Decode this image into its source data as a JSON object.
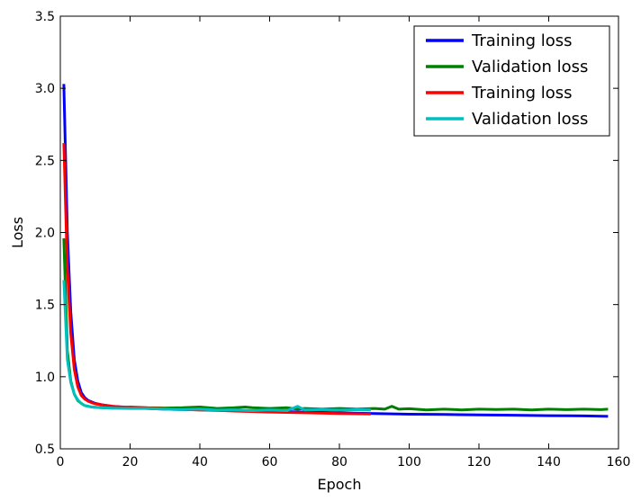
{
  "chart_data": {
    "type": "line",
    "xlabel": "Epoch",
    "ylabel": "Loss",
    "xlim": [
      0,
      160
    ],
    "ylim": [
      0.5,
      3.5
    ],
    "xticks": [
      "0",
      "20",
      "40",
      "60",
      "80",
      "100",
      "120",
      "140",
      "160"
    ],
    "yticks": [
      "0.5",
      "1.0",
      "1.5",
      "2.0",
      "2.5",
      "3.0",
      "3.5"
    ],
    "grid": false,
    "legend_position": "top-right",
    "series": [
      {
        "name": "Training loss",
        "color": "#0000ff",
        "x": [
          1,
          2,
          3,
          4,
          5,
          6,
          7,
          8,
          9,
          10,
          12,
          15,
          20,
          25,
          30,
          40,
          50,
          60,
          70,
          80,
          90,
          100,
          110,
          120,
          130,
          140,
          150,
          157
        ],
        "y": [
          3.03,
          2.0,
          1.45,
          1.12,
          0.97,
          0.89,
          0.855,
          0.835,
          0.825,
          0.815,
          0.805,
          0.795,
          0.785,
          0.78,
          0.775,
          0.77,
          0.765,
          0.76,
          0.755,
          0.75,
          0.745,
          0.74,
          0.738,
          0.735,
          0.733,
          0.73,
          0.728,
          0.725
        ]
      },
      {
        "name": "Validation loss",
        "color": "#008000",
        "x": [
          1,
          2,
          3,
          4,
          5,
          6,
          7,
          8,
          9,
          10,
          12,
          15,
          20,
          25,
          30,
          35,
          40,
          45,
          50,
          53,
          55,
          60,
          65,
          68,
          70,
          75,
          80,
          85,
          90,
          93,
          95,
          97,
          100,
          105,
          110,
          115,
          120,
          125,
          130,
          135,
          140,
          145,
          150,
          155,
          157
        ],
        "y": [
          1.96,
          1.18,
          0.97,
          0.88,
          0.835,
          0.815,
          0.8,
          0.795,
          0.79,
          0.788,
          0.785,
          0.782,
          0.79,
          0.785,
          0.783,
          0.785,
          0.79,
          0.78,
          0.785,
          0.79,
          0.785,
          0.78,
          0.785,
          0.775,
          0.78,
          0.775,
          0.78,
          0.775,
          0.78,
          0.775,
          0.795,
          0.775,
          0.778,
          0.77,
          0.775,
          0.77,
          0.775,
          0.773,
          0.775,
          0.77,
          0.775,
          0.772,
          0.775,
          0.772,
          0.775
        ]
      },
      {
        "name": "Training loss",
        "color": "#ff0000",
        "x": [
          1,
          2,
          3,
          4,
          5,
          6,
          7,
          8,
          9,
          10,
          12,
          15,
          20,
          30,
          40,
          50,
          60,
          70,
          80,
          89
        ],
        "y": [
          2.62,
          1.75,
          1.3,
          1.05,
          0.93,
          0.87,
          0.845,
          0.83,
          0.82,
          0.812,
          0.805,
          0.795,
          0.787,
          0.778,
          0.77,
          0.762,
          0.755,
          0.75,
          0.745,
          0.742
        ]
      },
      {
        "name": "Validation loss",
        "color": "#00bfbf",
        "x": [
          1,
          2,
          3,
          4,
          5,
          6,
          7,
          8,
          9,
          10,
          12,
          15,
          20,
          25,
          30,
          35,
          40,
          45,
          50,
          55,
          60,
          65,
          68,
          70,
          75,
          80,
          85,
          89
        ],
        "y": [
          1.67,
          1.12,
          0.96,
          0.88,
          0.84,
          0.815,
          0.8,
          0.795,
          0.79,
          0.787,
          0.785,
          0.782,
          0.78,
          0.78,
          0.775,
          0.772,
          0.775,
          0.768,
          0.77,
          0.765,
          0.77,
          0.765,
          0.795,
          0.77,
          0.772,
          0.768,
          0.772,
          0.77
        ]
      }
    ]
  }
}
